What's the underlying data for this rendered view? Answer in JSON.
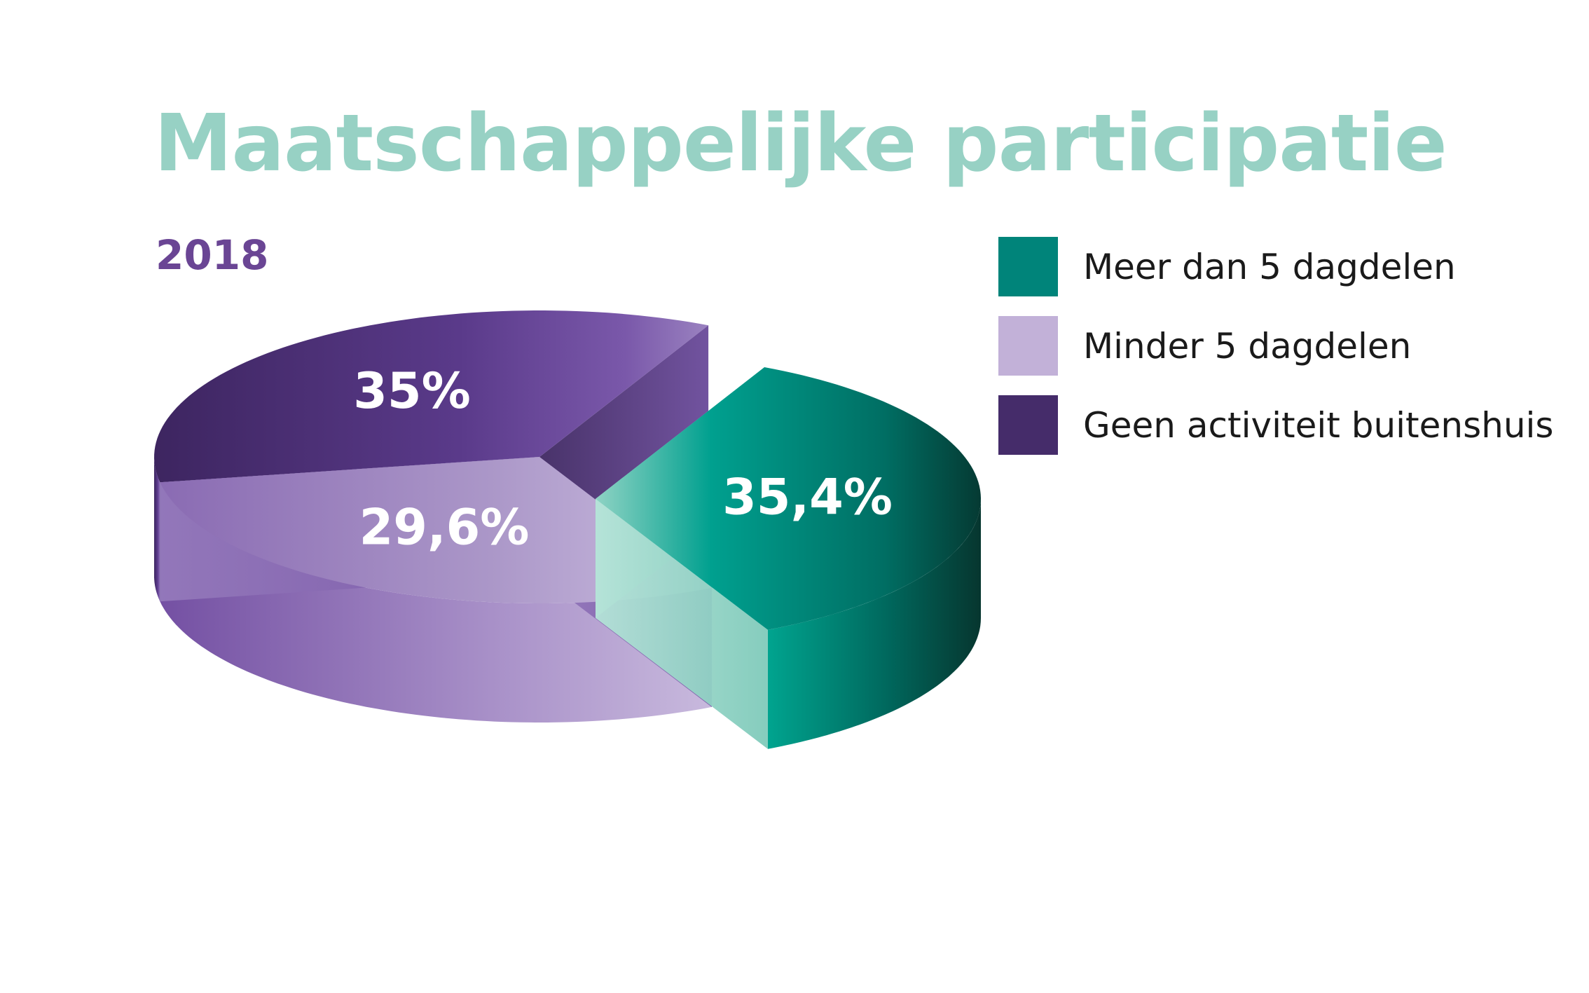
{
  "chart_data": {
    "type": "pie",
    "title": "Maatschappelijke participatie",
    "subtitle": "2018",
    "categories": [
      "Meer dan 5 dagdelen",
      "Minder 5 dagdelen",
      "Geen activiteit buitenshuis"
    ],
    "values": [
      35.4,
      29.6,
      35
    ],
    "value_labels": [
      "35,4%",
      "29,6%",
      "35%"
    ],
    "colors": [
      "#00847a",
      "#c2b1d8",
      "#452c6a"
    ],
    "exploded": "Meer dan 5 dagdelen",
    "style": "3d",
    "legend_position": "right"
  }
}
